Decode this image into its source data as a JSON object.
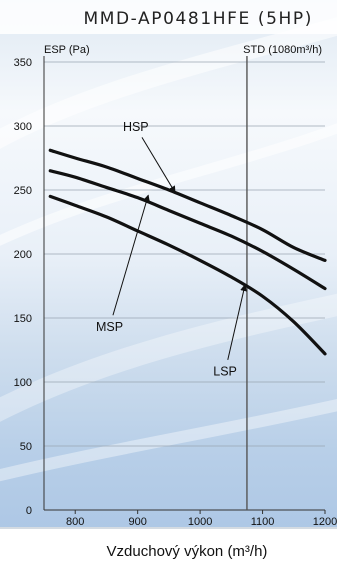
{
  "chart_data": {
    "type": "line",
    "title": "MMD-AP0481HFE (5HP)",
    "ylabel": "ESP (Pa)",
    "xlabel": "Vzduchový výkon (m³/h)",
    "std_label": "STD (1080m³/h)",
    "std_x": 1075,
    "xlim": [
      750,
      1200
    ],
    "ylim": [
      0,
      350
    ],
    "xticks": [
      800,
      900,
      1000,
      1100,
      1200
    ],
    "yticks": [
      0,
      50,
      100,
      150,
      200,
      250,
      300,
      350
    ],
    "grid": "horizontal",
    "series": [
      {
        "name": "HSP",
        "x": [
          760,
          800,
          850,
          900,
          950,
          1000,
          1050,
          1100,
          1150,
          1200
        ],
        "y": [
          281,
          275,
          268,
          259,
          250,
          240,
          230,
          219,
          205,
          195
        ]
      },
      {
        "name": "MSP",
        "x": [
          760,
          800,
          850,
          900,
          950,
          1000,
          1050,
          1100,
          1150,
          1200
        ],
        "y": [
          265,
          260,
          252,
          244,
          234,
          224,
          214,
          202,
          188,
          173
        ]
      },
      {
        "name": "LSP",
        "x": [
          760,
          800,
          850,
          900,
          950,
          1000,
          1050,
          1100,
          1150,
          1200
        ],
        "y": [
          245,
          238,
          229,
          218,
          207,
          195,
          182,
          167,
          147,
          122
        ]
      }
    ],
    "annotations": [
      {
        "text": "HSP",
        "label_x": 897,
        "label_y": 296,
        "arrow_x": 960,
        "arrow_y": 248
      },
      {
        "text": "MSP",
        "label_x": 855,
        "label_y": 140,
        "arrow_x": 917,
        "arrow_y": 246
      },
      {
        "text": "LSP",
        "label_x": 1040,
        "label_y": 105,
        "arrow_x": 1072,
        "arrow_y": 176
      }
    ]
  }
}
